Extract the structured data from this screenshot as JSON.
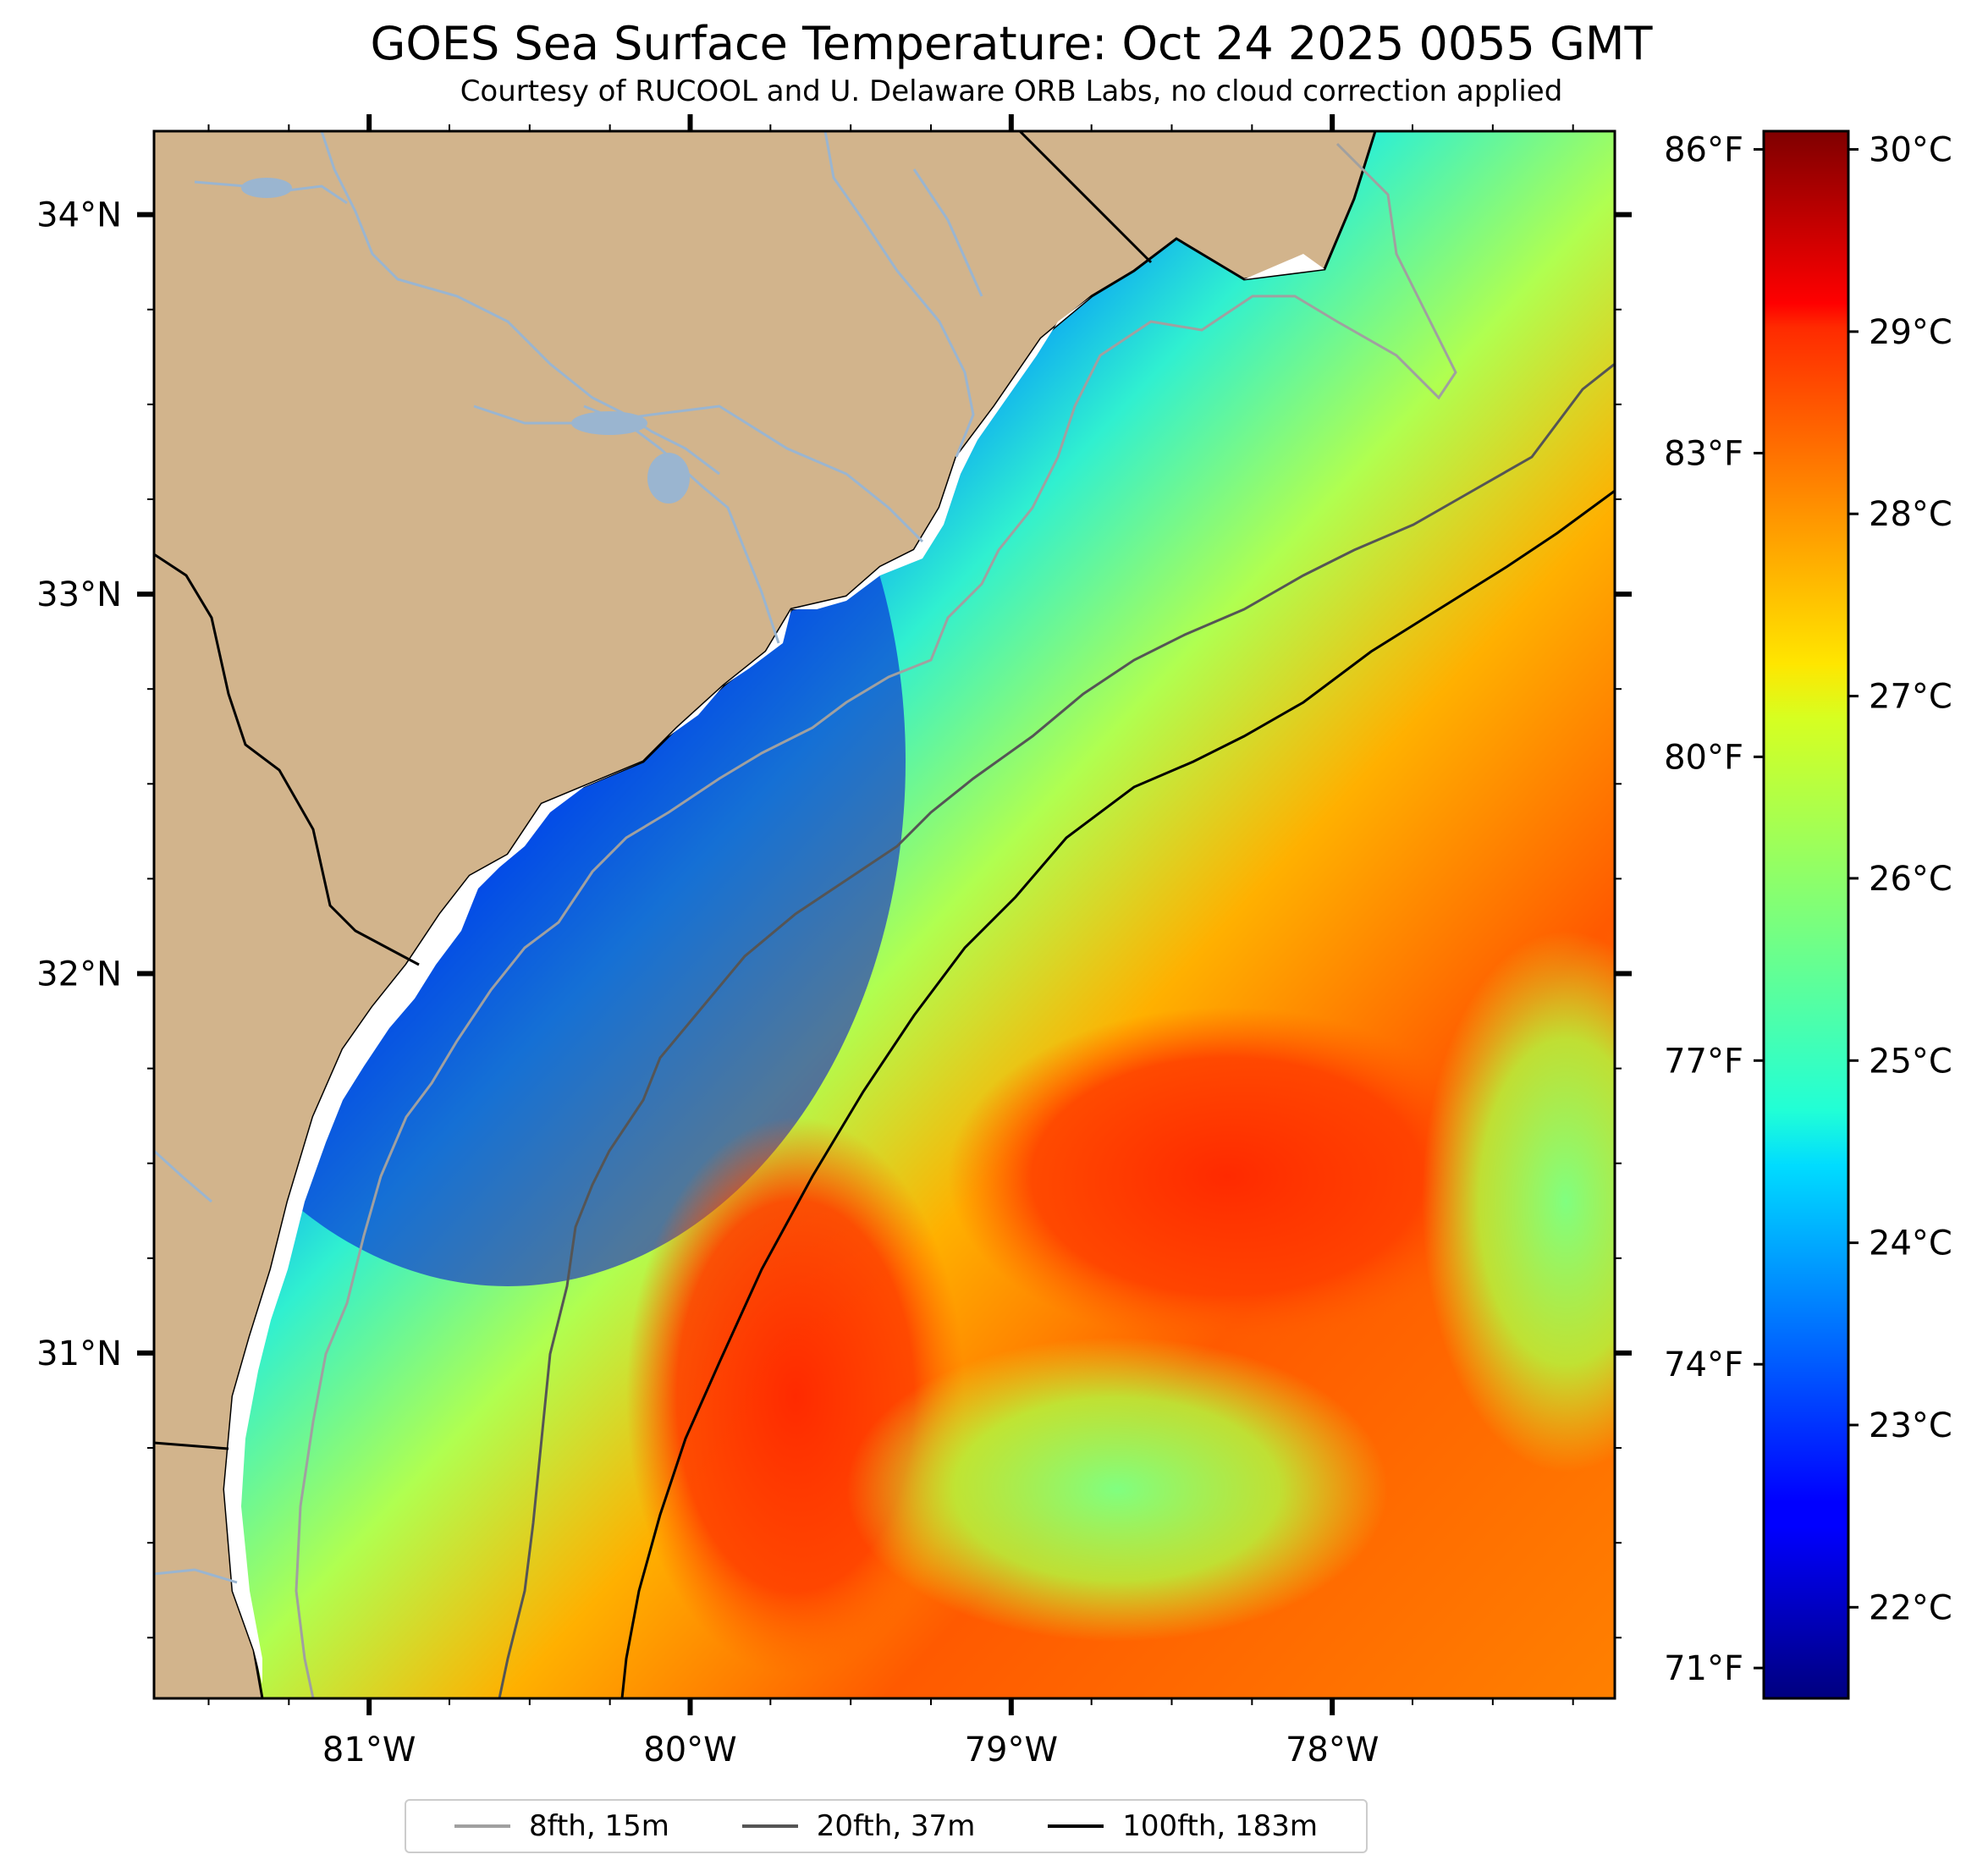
{
  "title": "GOES Sea Surface Temperature: Oct 24 2025 0055 GMT",
  "subtitle": "Courtesy of RUCOOL and U. Delaware ORB Labs, no cloud correction applied",
  "map": {
    "lon_range": [
      -81.67,
      -77.12
    ],
    "lat_range": [
      30.09,
      34.22
    ],
    "lon_ticks": [
      {
        "value": -81,
        "label": "81°W"
      },
      {
        "value": -80,
        "label": "80°W"
      },
      {
        "value": -79,
        "label": "79°W"
      },
      {
        "value": -78,
        "label": "78°W"
      }
    ],
    "lat_ticks": [
      {
        "value": 34,
        "label": "34°N"
      },
      {
        "value": 33,
        "label": "33°N"
      },
      {
        "value": 32,
        "label": "32°N"
      },
      {
        "value": 31,
        "label": "31°N"
      }
    ],
    "land_color": "#d2b48c",
    "river_color": "#9ab5d0"
  },
  "colorbar": {
    "colormap": "jet",
    "celsius_range": [
      21.5,
      30.1
    ],
    "celsius_ticks": [
      {
        "value": 22,
        "label": "22°C"
      },
      {
        "value": 23,
        "label": "23°C"
      },
      {
        "value": 24,
        "label": "24°C"
      },
      {
        "value": 25,
        "label": "25°C"
      },
      {
        "value": 26,
        "label": "26°C"
      },
      {
        "value": 27,
        "label": "27°C"
      },
      {
        "value": 28,
        "label": "28°C"
      },
      {
        "value": 29,
        "label": "29°C"
      },
      {
        "value": 30,
        "label": "30°C"
      }
    ],
    "fahrenheit_ticks": [
      {
        "value": 71,
        "label": "71°F"
      },
      {
        "value": 74,
        "label": "74°F"
      },
      {
        "value": 77,
        "label": "77°F"
      },
      {
        "value": 80,
        "label": "80°F"
      },
      {
        "value": 83,
        "label": "83°F"
      },
      {
        "value": 86,
        "label": "86°F"
      }
    ]
  },
  "legend": [
    {
      "label": "8fth, 15m",
      "color": "#a0a0a0"
    },
    {
      "label": "20fth, 37m",
      "color": "#555555"
    },
    {
      "label": "100fth, 183m",
      "color": "#000000"
    }
  ]
}
